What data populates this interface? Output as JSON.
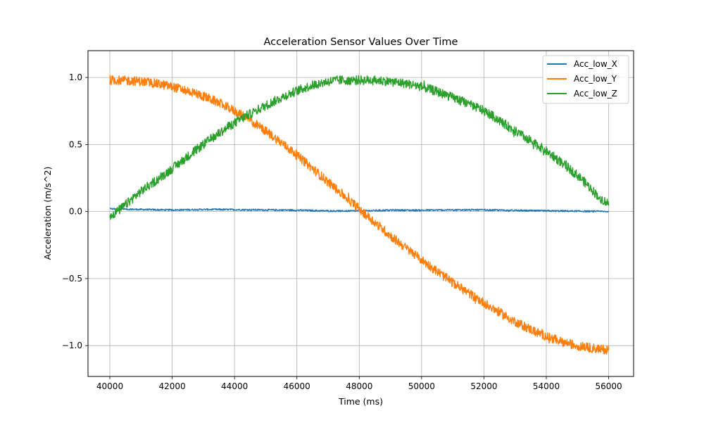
{
  "chart_data": {
    "type": "line",
    "title": "Acceleration Sensor Values Over Time",
    "xlabel": "Time (ms)",
    "ylabel": "Acceleration (m/s^2)",
    "xlim": [
      39300,
      56800
    ],
    "ylim": [
      -1.23,
      1.2
    ],
    "x_ticks": [
      40000,
      42000,
      44000,
      46000,
      48000,
      50000,
      52000,
      54000,
      56000
    ],
    "x_tick_labels": [
      "40000",
      "42000",
      "44000",
      "46000",
      "48000",
      "50000",
      "52000",
      "54000",
      "56000"
    ],
    "y_ticks": [
      -1.0,
      -0.5,
      0.0,
      0.5,
      1.0
    ],
    "y_tick_labels": [
      "−1.0",
      "−0.5",
      "0.0",
      "0.5",
      "1.0"
    ],
    "grid": true,
    "legend_position": "top-right",
    "series": [
      {
        "name": "Acc_low_X",
        "color": "#1f77b4",
        "x": [
          40000,
          41000,
          42000,
          43000,
          44000,
          45000,
          46000,
          47000,
          48000,
          49000,
          50000,
          51000,
          52000,
          53000,
          54000,
          55000,
          56000
        ],
        "values": [
          0.02,
          0.015,
          0.012,
          0.015,
          0.014,
          0.012,
          0.01,
          0.005,
          0.005,
          0.01,
          0.01,
          0.012,
          0.012,
          0.008,
          0.005,
          0.003,
          0.0
        ]
      },
      {
        "name": "Acc_low_Y",
        "color": "#ff7f0e",
        "x": [
          40000,
          41000,
          42000,
          43000,
          44000,
          45000,
          46000,
          47000,
          48000,
          49000,
          50000,
          51000,
          52000,
          53000,
          54000,
          55000,
          56000
        ],
        "values": [
          0.98,
          0.97,
          0.93,
          0.86,
          0.75,
          0.6,
          0.42,
          0.22,
          0.02,
          -0.18,
          -0.36,
          -0.53,
          -0.68,
          -0.82,
          -0.93,
          -1.0,
          -1.03
        ]
      },
      {
        "name": "Acc_low_Z",
        "color": "#2ca02c",
        "x": [
          40000,
          41000,
          42000,
          43000,
          44000,
          45000,
          46000,
          47000,
          48000,
          49000,
          50000,
          51000,
          52000,
          53000,
          54000,
          55000,
          56000
        ],
        "values": [
          -0.03,
          0.15,
          0.32,
          0.5,
          0.66,
          0.79,
          0.9,
          0.97,
          0.98,
          0.97,
          0.93,
          0.85,
          0.75,
          0.6,
          0.45,
          0.27,
          0.06
        ]
      }
    ]
  }
}
